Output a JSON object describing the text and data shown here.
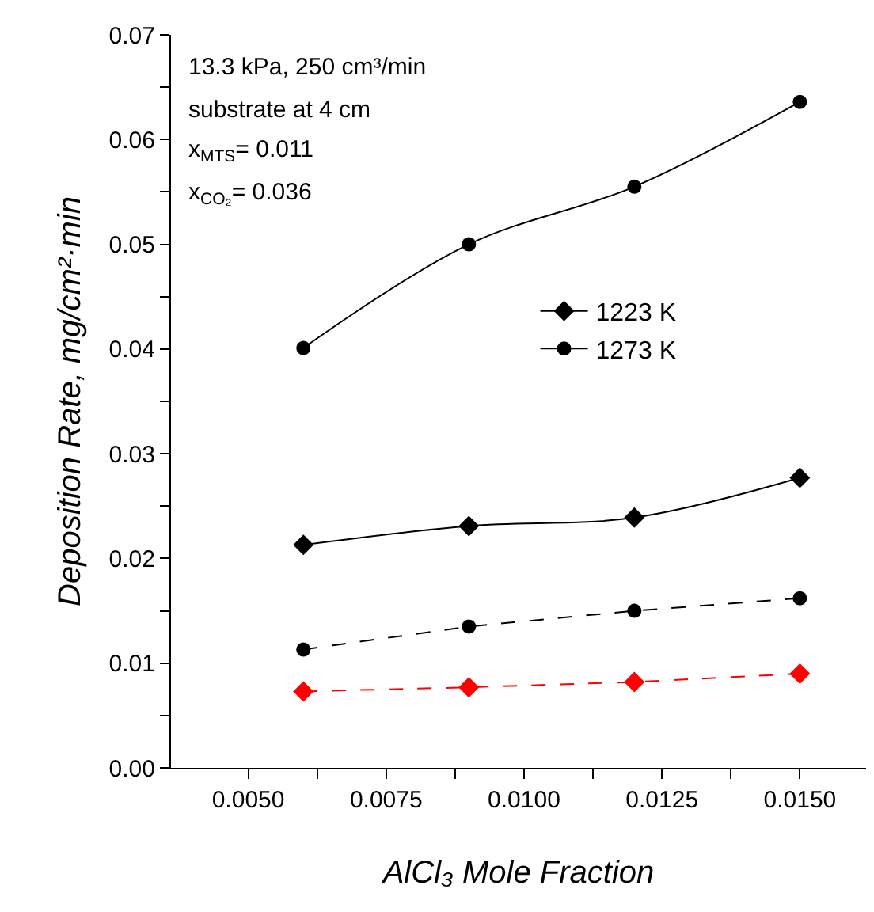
{
  "chart_data": {
    "type": "line",
    "xlabel": "AlCl₃ Mole Fraction",
    "ylabel": "Deposition Rate, mg/cm²·min",
    "annotations": [
      "13.3 kPa, 250 cm³/min",
      "substrate at 4 cm",
      "x$_{MTS}$= 0.011",
      "x$_{CO₂}$= 0.036"
    ],
    "x": [
      0.006,
      0.009,
      0.012,
      0.015
    ],
    "series": [
      {
        "name": "1223 K",
        "color": "#000000",
        "marker": "diamond",
        "line_style": "solid",
        "values": [
          0.0213,
          0.0231,
          0.0239,
          0.0277
        ]
      },
      {
        "name": "1273 K",
        "color": "#000000",
        "marker": "circle",
        "line_style": "solid",
        "values": [
          0.0401,
          0.05,
          0.0555,
          0.0636
        ]
      },
      {
        "color": "#000000",
        "marker": "circle",
        "line_style": "dashed",
        "values": [
          0.0113,
          0.0135,
          0.015,
          0.0162
        ]
      },
      {
        "color": "#ff0000",
        "marker": "diamond",
        "line_style": "dashed",
        "values": [
          0.0073,
          0.0077,
          0.0082,
          0.009
        ]
      }
    ],
    "xlim": [
      0.0036,
      0.0162
    ],
    "xticks": [
      {
        "value": 0.005,
        "label": "0.0050"
      },
      {
        "value": 0.00625,
        "label": null
      },
      {
        "value": 0.0075,
        "label": "0.0075"
      },
      {
        "value": 0.00875,
        "label": null
      },
      {
        "value": 0.01,
        "label": "0.0100"
      },
      {
        "value": 0.01125,
        "label": null
      },
      {
        "value": 0.0125,
        "label": "0.0125"
      },
      {
        "value": 0.01375,
        "label": null
      },
      {
        "value": 0.015,
        "label": "0.0150"
      }
    ],
    "ylim": [
      0,
      0.07
    ],
    "yticks": [
      {
        "value": 0,
        "label": "0.00"
      },
      {
        "value": 0.005,
        "label": null
      },
      {
        "value": 0.01,
        "label": "0.01"
      },
      {
        "value": 0.015,
        "label": null
      },
      {
        "value": 0.02,
        "label": "0.02"
      },
      {
        "value": 0.025,
        "label": null
      },
      {
        "value": 0.03,
        "label": "0.03"
      },
      {
        "value": 0.035,
        "label": null
      },
      {
        "value": 0.04,
        "label": "0.04"
      },
      {
        "value": 0.045,
        "label": null
      },
      {
        "value": 0.05,
        "label": "0.05"
      },
      {
        "value": 0.055,
        "label": null
      },
      {
        "value": 0.06,
        "label": "0.06"
      },
      {
        "value": 0.065,
        "label": null
      },
      {
        "value": 0.07,
        "label": "0.07"
      }
    ],
    "grid": false,
    "legend": "right"
  }
}
